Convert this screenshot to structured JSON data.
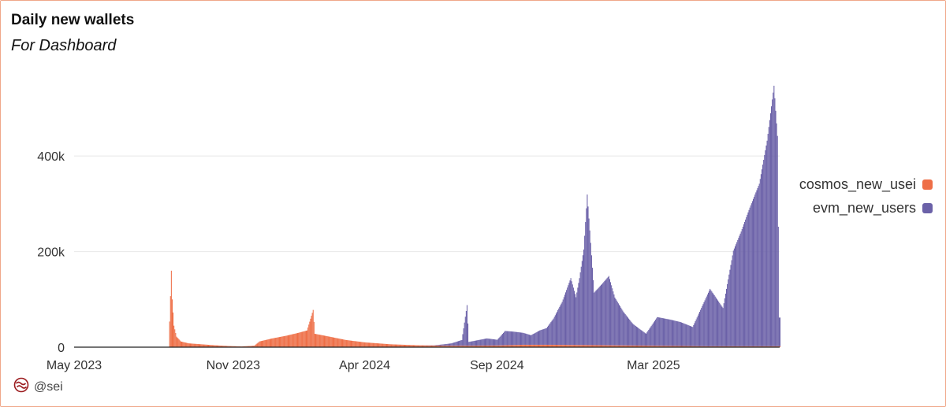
{
  "header": {
    "title": "Daily new wallets",
    "subtitle": "For Dashboard"
  },
  "watermark": {
    "handle": "@sei",
    "logo_icon": "sei-logo-icon"
  },
  "colors": {
    "cosmos": "#ee6e46",
    "evm": "#6b61a8",
    "grid": "#e8e8e8",
    "axis": "#333333",
    "frame": "#f0a78a"
  },
  "chart_data": {
    "type": "bar",
    "stacked": true,
    "title": "Daily new wallets",
    "subtitle": "For Dashboard",
    "x_type": "date",
    "xlim": [
      "2023-05-01",
      "2025-07-25"
    ],
    "ylim": [
      0,
      560000
    ],
    "y_ticks": [
      0,
      200000,
      400000
    ],
    "y_tick_labels": [
      "0",
      "200k",
      "400k"
    ],
    "x_ticks": [
      "2023-05-01",
      "2023-11-01",
      "2024-04-01",
      "2024-09-01",
      "2025-03-01"
    ],
    "x_tick_labels": [
      "May 2023",
      "Nov 2023",
      "Apr 2024",
      "Sep 2024",
      "Mar 2025"
    ],
    "grid": true,
    "legend_position": "right",
    "series": [
      {
        "name": "cosmos_new_users",
        "display_label": "cosmos_new_usei",
        "color": "#ee6e46",
        "points": [
          [
            "2023-05-01",
            0
          ],
          [
            "2023-08-15",
            0
          ],
          [
            "2023-08-18",
            500
          ],
          [
            "2023-08-21",
            160000
          ],
          [
            "2023-08-22",
            100000
          ],
          [
            "2023-08-24",
            45000
          ],
          [
            "2023-08-27",
            22000
          ],
          [
            "2023-09-01",
            12000
          ],
          [
            "2023-09-10",
            8000
          ],
          [
            "2023-09-25",
            6000
          ],
          [
            "2023-10-10",
            4000
          ],
          [
            "2023-10-25",
            2500
          ],
          [
            "2023-11-10",
            1500
          ],
          [
            "2023-11-25",
            3000
          ],
          [
            "2023-12-01",
            12000
          ],
          [
            "2023-12-15",
            18000
          ],
          [
            "2024-01-01",
            24000
          ],
          [
            "2024-01-15",
            30000
          ],
          [
            "2024-01-25",
            35000
          ],
          [
            "2024-02-01",
            78000
          ],
          [
            "2024-02-03",
            28000
          ],
          [
            "2024-02-20",
            22000
          ],
          [
            "2024-03-10",
            15000
          ],
          [
            "2024-04-01",
            10000
          ],
          [
            "2024-05-01",
            6000
          ],
          [
            "2024-06-01",
            4000
          ],
          [
            "2024-07-01",
            3000
          ],
          [
            "2024-08-01",
            3000
          ],
          [
            "2024-09-01",
            3500
          ],
          [
            "2024-10-01",
            5000
          ],
          [
            "2024-11-01",
            5000
          ],
          [
            "2025-01-01",
            4000
          ],
          [
            "2025-03-01",
            3000
          ],
          [
            "2025-05-01",
            2000
          ],
          [
            "2025-07-25",
            2000
          ]
        ]
      },
      {
        "name": "evm_new_users",
        "display_label": "evm_new_users",
        "color": "#6b61a8",
        "points": [
          [
            "2023-05-01",
            0
          ],
          [
            "2024-06-01",
            0
          ],
          [
            "2024-06-20",
            500
          ],
          [
            "2024-07-10",
            5000
          ],
          [
            "2024-07-22",
            12000
          ],
          [
            "2024-07-28",
            85000
          ],
          [
            "2024-07-30",
            8000
          ],
          [
            "2024-08-20",
            15000
          ],
          [
            "2024-09-01",
            12000
          ],
          [
            "2024-09-10",
            30000
          ],
          [
            "2024-09-20",
            28000
          ],
          [
            "2024-10-01",
            25000
          ],
          [
            "2024-10-10",
            20000
          ],
          [
            "2024-10-20",
            30000
          ],
          [
            "2024-10-28",
            35000
          ],
          [
            "2024-11-05",
            55000
          ],
          [
            "2024-11-15",
            90000
          ],
          [
            "2024-11-25",
            140000
          ],
          [
            "2024-12-01",
            100000
          ],
          [
            "2024-12-05",
            140000
          ],
          [
            "2024-12-10",
            200000
          ],
          [
            "2024-12-14",
            315000
          ],
          [
            "2024-12-17",
            240000
          ],
          [
            "2024-12-22",
            110000
          ],
          [
            "2025-01-01",
            130000
          ],
          [
            "2025-01-08",
            145000
          ],
          [
            "2025-01-15",
            100000
          ],
          [
            "2025-01-25",
            70000
          ],
          [
            "2025-02-05",
            45000
          ],
          [
            "2025-02-20",
            25000
          ],
          [
            "2025-03-05",
            60000
          ],
          [
            "2025-03-20",
            55000
          ],
          [
            "2025-04-01",
            50000
          ],
          [
            "2025-04-15",
            40000
          ],
          [
            "2025-04-25",
            80000
          ],
          [
            "2025-05-05",
            120000
          ],
          [
            "2025-05-20",
            80000
          ],
          [
            "2025-06-01",
            200000
          ],
          [
            "2025-06-10",
            240000
          ],
          [
            "2025-06-20",
            290000
          ],
          [
            "2025-07-01",
            340000
          ],
          [
            "2025-07-10",
            430000
          ],
          [
            "2025-07-18",
            545000
          ],
          [
            "2025-07-22",
            440000
          ],
          [
            "2025-07-24",
            60000
          ]
        ]
      }
    ]
  }
}
